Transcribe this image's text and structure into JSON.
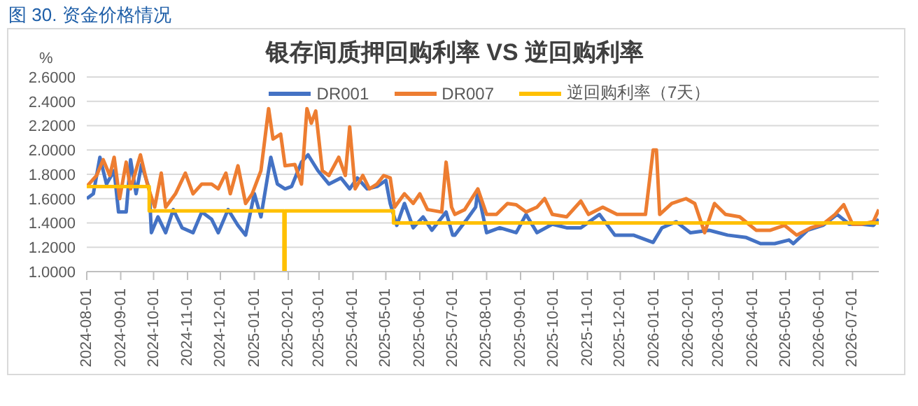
{
  "chart_data": {
    "type": "line",
    "title": "图 30. 资金价格情况",
    "subtitle": "银存间质押回购利率 VS 逆回购利率",
    "ylabel": "%",
    "xlim": [
      "2024-08-01",
      "2026-07-25"
    ],
    "xticks": [
      "2024-08-01",
      "2024-09-01",
      "2024-10-01",
      "2024-11-01",
      "2024-12-01",
      "2025-01-01",
      "2025-02-01",
      "2025-03-01",
      "2025-04-01",
      "2025-05-01",
      "2025-06-01",
      "2025-07-01",
      "2025-08-01",
      "2025-09-01",
      "2025-10-01",
      "2025-11-01",
      "2025-12-01",
      "2026-01-01",
      "2026-02-01",
      "2026-03-01",
      "2026-04-01",
      "2026-05-01",
      "2026-06-01",
      "2026-07-01"
    ],
    "ylim": [
      1.0,
      2.6
    ],
    "yticks": [
      {
        "value": 1.0,
        "label": "1.0000"
      },
      {
        "value": 1.2,
        "label": "1.2000"
      },
      {
        "value": 1.4,
        "label": "1.4000"
      },
      {
        "value": 1.6,
        "label": "1.6000"
      },
      {
        "value": 1.8,
        "label": "1.8000"
      },
      {
        "value": 2.0,
        "label": "2.0000"
      },
      {
        "value": 2.2,
        "label": "2.2000"
      },
      {
        "value": 2.4,
        "label": "2.4000"
      },
      {
        "value": 2.6,
        "label": "2.6000"
      }
    ],
    "grid": "y",
    "legend": "top",
    "marker": "none",
    "line_style": "solid",
    "series": [
      {
        "name": "DR001",
        "color": "#4472c4",
        "x": [
          "2024-08-01",
          "2024-08-07",
          "2024-08-13",
          "2024-08-19",
          "2024-08-26",
          "2024-08-30",
          "2024-09-06",
          "2024-09-10",
          "2024-09-15",
          "2024-09-20",
          "2024-09-27",
          "2024-09-29",
          "2024-10-05",
          "2024-10-12",
          "2024-10-19",
          "2024-10-27",
          "2024-11-06",
          "2024-11-14",
          "2024-11-23",
          "2024-11-29",
          "2024-12-08",
          "2024-12-17",
          "2024-12-24",
          "2025-01-01",
          "2025-01-07",
          "2025-01-16",
          "2025-01-22",
          "2025-01-29",
          "2025-02-04",
          "2025-02-13",
          "2025-02-19",
          "2025-02-28",
          "2025-03-10",
          "2025-03-21",
          "2025-03-29",
          "2025-04-05",
          "2025-04-14",
          "2025-04-23",
          "2025-05-01",
          "2025-05-05",
          "2025-05-11",
          "2025-05-18",
          "2025-05-26",
          "2025-06-04",
          "2025-06-12",
          "2025-06-25",
          "2025-07-01",
          "2025-07-03",
          "2025-07-14",
          "2025-07-22",
          "2025-07-24",
          "2025-08-01",
          "2025-08-13",
          "2025-08-28",
          "2025-09-06",
          "2025-09-16",
          "2025-09-30",
          "2025-10-13",
          "2025-10-26",
          "2025-11-12",
          "2025-11-26",
          "2025-12-13",
          "2025-12-31",
          "2026-01-08",
          "2026-01-21",
          "2026-02-03",
          "2026-02-20",
          "2026-03-09",
          "2026-03-26",
          "2026-04-08",
          "2026-04-21",
          "2026-05-04",
          "2026-05-08",
          "2026-05-21",
          "2026-06-04",
          "2026-06-17",
          "2026-06-28",
          "2026-07-09",
          "2026-07-20",
          "2026-07-25"
        ],
        "values": [
          1.6,
          1.64,
          1.94,
          1.72,
          1.83,
          1.49,
          1.49,
          1.92,
          1.64,
          1.88,
          1.68,
          1.32,
          1.45,
          1.32,
          1.51,
          1.36,
          1.32,
          1.49,
          1.43,
          1.32,
          1.51,
          1.38,
          1.3,
          1.64,
          1.45,
          1.94,
          1.72,
          1.68,
          1.7,
          1.9,
          1.96,
          1.83,
          1.72,
          1.77,
          1.68,
          1.77,
          1.68,
          1.7,
          1.75,
          1.56,
          1.38,
          1.56,
          1.36,
          1.45,
          1.34,
          1.49,
          1.3,
          1.3,
          1.43,
          1.53,
          1.66,
          1.32,
          1.36,
          1.32,
          1.47,
          1.32,
          1.39,
          1.36,
          1.36,
          1.47,
          1.3,
          1.3,
          1.24,
          1.36,
          1.41,
          1.32,
          1.34,
          1.3,
          1.28,
          1.23,
          1.23,
          1.26,
          1.23,
          1.34,
          1.38,
          1.47,
          1.39,
          1.39,
          1.38,
          1.43
        ]
      },
      {
        "name": "DR007",
        "color": "#ed7d31",
        "x": [
          "2024-08-01",
          "2024-08-10",
          "2024-08-16",
          "2024-08-22",
          "2024-08-26",
          "2024-08-31",
          "2024-09-06",
          "2024-09-10",
          "2024-09-19",
          "2024-09-25",
          "2024-09-28",
          "2024-10-02",
          "2024-10-08",
          "2024-10-12",
          "2024-10-21",
          "2024-10-30",
          "2024-11-06",
          "2024-11-14",
          "2024-11-23",
          "2024-11-29",
          "2024-12-06",
          "2024-12-10",
          "2024-12-17",
          "2024-12-24",
          "2024-12-30",
          "2025-01-07",
          "2025-01-14",
          "2025-01-18",
          "2025-01-25",
          "2025-01-29",
          "2025-02-07",
          "2025-02-13",
          "2025-02-18",
          "2025-02-22",
          "2025-02-26",
          "2025-03-04",
          "2025-03-10",
          "2025-03-19",
          "2025-03-25",
          "2025-03-29",
          "2025-04-03",
          "2025-04-10",
          "2025-04-16",
          "2025-04-23",
          "2025-04-29",
          "2025-05-05",
          "2025-05-09",
          "2025-05-18",
          "2025-05-26",
          "2025-06-01",
          "2025-06-08",
          "2025-06-21",
          "2025-06-25",
          "2025-06-30",
          "2025-07-03",
          "2025-07-12",
          "2025-07-24",
          "2025-08-01",
          "2025-08-10",
          "2025-08-20",
          "2025-08-28",
          "2025-09-06",
          "2025-09-16",
          "2025-09-23",
          "2025-09-30",
          "2025-10-13",
          "2025-10-26",
          "2025-11-02",
          "2025-11-15",
          "2025-11-28",
          "2025-12-13",
          "2025-12-24",
          "2025-12-31",
          "2026-01-03",
          "2026-01-06",
          "2026-01-17",
          "2026-01-30",
          "2026-02-07",
          "2026-02-16",
          "2026-02-25",
          "2026-03-07",
          "2026-03-20",
          "2026-04-04",
          "2026-04-17",
          "2026-04-30",
          "2026-05-11",
          "2026-05-24",
          "2026-06-04",
          "2026-06-15",
          "2026-06-23",
          "2026-07-01",
          "2026-07-09",
          "2026-07-20",
          "2026-07-25"
        ],
        "values": [
          1.7,
          1.79,
          1.92,
          1.79,
          1.94,
          1.6,
          1.9,
          1.68,
          1.96,
          1.73,
          1.64,
          1.53,
          1.81,
          1.53,
          1.64,
          1.81,
          1.64,
          1.72,
          1.72,
          1.68,
          1.81,
          1.64,
          1.87,
          1.56,
          1.64,
          1.83,
          2.34,
          2.09,
          2.13,
          1.87,
          1.88,
          1.72,
          2.34,
          2.22,
          2.32,
          1.83,
          1.79,
          1.94,
          1.79,
          2.19,
          1.68,
          1.79,
          1.68,
          1.72,
          1.79,
          1.77,
          1.53,
          1.64,
          1.56,
          1.64,
          1.51,
          1.49,
          1.9,
          1.53,
          1.47,
          1.51,
          1.68,
          1.47,
          1.47,
          1.56,
          1.55,
          1.49,
          1.53,
          1.6,
          1.47,
          1.45,
          1.58,
          1.47,
          1.53,
          1.47,
          1.47,
          1.47,
          2.0,
          2.0,
          1.47,
          1.56,
          1.6,
          1.56,
          1.32,
          1.56,
          1.47,
          1.45,
          1.34,
          1.34,
          1.38,
          1.3,
          1.36,
          1.39,
          1.47,
          1.55,
          1.39,
          1.39,
          1.41,
          1.51
        ]
      },
      {
        "name": "逆回购利率（7天）",
        "color": "#ffc000",
        "type": "step",
        "x": [
          "2024-08-01",
          "2024-09-27",
          "2025-01-27",
          "2025-01-28",
          "2025-01-29",
          "2025-05-08",
          "2026-07-25"
        ],
        "values": [
          1.7,
          1.5,
          1.5,
          1.0,
          1.5,
          1.4,
          1.4
        ]
      }
    ]
  }
}
